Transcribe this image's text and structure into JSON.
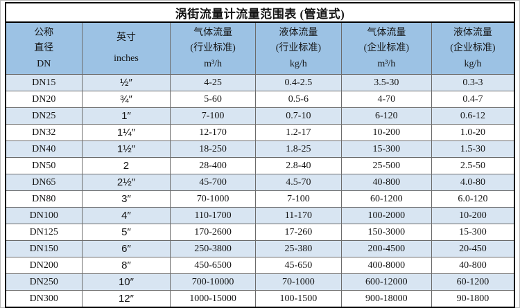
{
  "table": {
    "title": "涡街流量计流量范围表 (管道式)",
    "columns": [
      {
        "id": "dn",
        "lines": [
          "公称",
          "直径",
          "DN"
        ]
      },
      {
        "id": "inches",
        "lines": [
          "英寸",
          "inches"
        ]
      },
      {
        "id": "gas_industry",
        "lines": [
          "气体流量",
          "(行业标准)",
          "m³/h"
        ]
      },
      {
        "id": "liquid_industry",
        "lines": [
          "液体流量",
          "(行业标准)",
          "kg/h"
        ]
      },
      {
        "id": "gas_enterprise",
        "lines": [
          "气体流量",
          "(企业标准)",
          "m³/h"
        ]
      },
      {
        "id": "liquid_enterprise",
        "lines": [
          "液体流量",
          "(企业标准)",
          "kg/h"
        ]
      }
    ],
    "rows": [
      [
        "DN15",
        "½″",
        "4-25",
        "0.4-2.5",
        "3.5-30",
        "0.3-3"
      ],
      [
        "DN20",
        "¾″",
        "5-60",
        "0.5-6",
        "4-70",
        "0.4-7"
      ],
      [
        "DN25",
        "1″",
        "7-100",
        "0.7-10",
        "6-120",
        "0.6-12"
      ],
      [
        "DN32",
        "1¼″",
        "12-170",
        "1.2-17",
        "10-200",
        "1.0-20"
      ],
      [
        "DN40",
        "1½″",
        "18-250",
        "1.8-25",
        "15-300",
        "1.5-30"
      ],
      [
        "DN50",
        "2",
        "28-400",
        "2.8-40",
        "25-500",
        "2.5-50"
      ],
      [
        "DN65",
        "2½″",
        "45-700",
        "4.5-70",
        "40-800",
        "4.0-80"
      ],
      [
        "DN80",
        "3″",
        "70-1000",
        "7-100",
        "60-1200",
        "6.0-120"
      ],
      [
        "DN100",
        "4″",
        "110-1700",
        "11-170",
        "100-2000",
        "10-200"
      ],
      [
        "DN125",
        "5″",
        "170-2600",
        "17-260",
        "150-3000",
        "15-300"
      ],
      [
        "DN150",
        "6″",
        "250-3800",
        "25-380",
        "200-4500",
        "20-450"
      ],
      [
        "DN200",
        "8″",
        "450-6500",
        "45-650",
        "400-8000",
        "40-800"
      ],
      [
        "DN250",
        "10″",
        "700-10000",
        "70-1000",
        "600-12000",
        "60-1200"
      ],
      [
        "DN300",
        "12″",
        "1000-15000",
        "100-1500",
        "900-18000",
        "90-1800"
      ]
    ],
    "colors": {
      "header_bg": "#9cc2e4",
      "row_alt_bg": "#d8e5f2",
      "row_bg": "#ffffff",
      "border_outer": "#000000",
      "border_inner": "#6b6b6b",
      "text": "#141414"
    }
  }
}
